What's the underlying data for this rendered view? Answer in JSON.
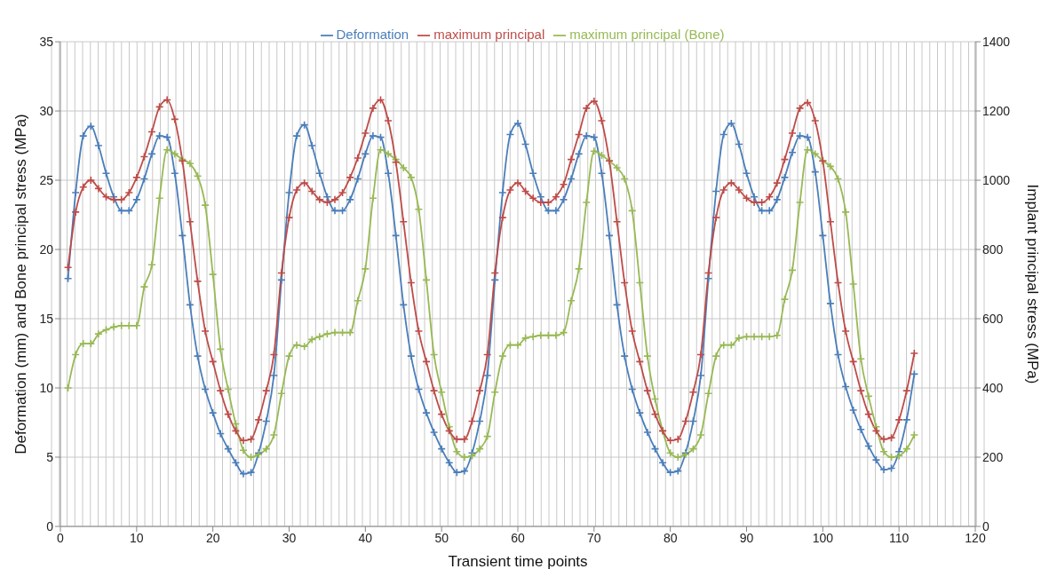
{
  "chart_data": {
    "type": "line",
    "xlabel": "Transient time points",
    "ylabel": "Deformation (mm) and Bone principal stress (MPa)",
    "y2label": "Implant principal stress (MPa)",
    "x": [
      1,
      2,
      3,
      4,
      5,
      6,
      7,
      8,
      9,
      10,
      11,
      12,
      13,
      14,
      15,
      16,
      17,
      18,
      19,
      20,
      21,
      22,
      23,
      24,
      25,
      26,
      27,
      28,
      29,
      30,
      31,
      32,
      33,
      34,
      35,
      36,
      37,
      38,
      39,
      40,
      41,
      42,
      43,
      44,
      45,
      46,
      47,
      48,
      49,
      50,
      51,
      52,
      53,
      54,
      55,
      56,
      57,
      58,
      59,
      60,
      61,
      62,
      63,
      64,
      65,
      66,
      67,
      68,
      69,
      70,
      71,
      72,
      73,
      74,
      75,
      76,
      77,
      78,
      79,
      80,
      81,
      82,
      83,
      84,
      85,
      86,
      87,
      88,
      89,
      90,
      91,
      92,
      93,
      94,
      95,
      96,
      97,
      98,
      99,
      100,
      101,
      102,
      103,
      104,
      105,
      106,
      107,
      108,
      109,
      110,
      111,
      112
    ],
    "xlim": [
      0,
      120
    ],
    "xticks": [
      0,
      10,
      20,
      30,
      40,
      50,
      60,
      70,
      80,
      90,
      100,
      110,
      120
    ],
    "ylim": [
      0,
      35
    ],
    "yticks": [
      0,
      5,
      10,
      15,
      20,
      25,
      30,
      35
    ],
    "y2lim": [
      0,
      1400
    ],
    "y2ticks": [
      0,
      200,
      400,
      600,
      800,
      1000,
      1200,
      1400
    ],
    "grid": true,
    "legend": "top",
    "marker": "cross",
    "line_style": "solid",
    "series": [
      {
        "name": "Deformation",
        "color": "#4a7ebb",
        "values": [
          17.9,
          24.1,
          28.2,
          28.9,
          27.5,
          25.5,
          23.8,
          22.8,
          22.8,
          23.6,
          25.1,
          26.9,
          28.2,
          28.1,
          25.5,
          21.0,
          16.0,
          12.3,
          9.9,
          8.2,
          6.7,
          5.6,
          4.6,
          3.8,
          3.9,
          5.3,
          7.6,
          10.9,
          17.8,
          24.1,
          28.2,
          29.0,
          27.5,
          25.5,
          23.8,
          22.8,
          22.8,
          23.6,
          25.1,
          26.9,
          28.2,
          28.1,
          25.5,
          21.0,
          16.0,
          12.3,
          9.9,
          8.2,
          6.8,
          5.6,
          4.6,
          3.9,
          4.0,
          5.3,
          7.6,
          10.9,
          17.8,
          24.1,
          28.3,
          29.1,
          27.6,
          25.5,
          23.8,
          22.8,
          22.8,
          23.6,
          25.1,
          26.9,
          28.2,
          28.1,
          25.5,
          21.0,
          16.0,
          12.3,
          9.9,
          8.2,
          6.8,
          5.6,
          4.6,
          3.9,
          4.0,
          5.3,
          7.6,
          10.9,
          17.9,
          24.2,
          28.3,
          29.1,
          27.6,
          25.5,
          23.8,
          22.8,
          22.8,
          23.6,
          25.2,
          27.0,
          28.2,
          28.1,
          25.6,
          21.0,
          16.1,
          12.4,
          10.1,
          8.4,
          7.0,
          5.8,
          4.8,
          4.1,
          4.2,
          5.4,
          7.7,
          11.0
        ]
      },
      {
        "name": "maximum principal (Bone)",
        "color": "#98b954",
        "values": [
          10.0,
          12.4,
          13.2,
          13.2,
          13.9,
          14.2,
          14.4,
          14.5,
          14.5,
          14.5,
          17.3,
          18.9,
          23.7,
          27.2,
          26.9,
          26.5,
          26.2,
          25.3,
          23.2,
          18.2,
          12.8,
          9.9,
          7.4,
          5.5,
          5.0,
          5.2,
          5.6,
          6.6,
          9.6,
          12.3,
          13.1,
          13.0,
          13.5,
          13.7,
          13.9,
          14.0,
          14.0,
          14.0,
          16.3,
          18.6,
          23.7,
          27.2,
          26.9,
          26.5,
          25.9,
          25.2,
          22.9,
          17.8,
          12.4,
          9.7,
          7.2,
          5.4,
          5.0,
          5.1,
          5.6,
          6.5,
          9.7,
          12.3,
          13.1,
          13.1,
          13.6,
          13.7,
          13.8,
          13.8,
          13.8,
          14.0,
          16.3,
          18.6,
          23.4,
          27.1,
          26.8,
          26.4,
          25.9,
          25.1,
          22.8,
          17.6,
          12.3,
          9.2,
          6.9,
          5.3,
          5.0,
          5.2,
          5.6,
          6.6,
          9.6,
          12.3,
          13.1,
          13.1,
          13.6,
          13.7,
          13.7,
          13.7,
          13.7,
          13.8,
          16.4,
          18.5,
          23.4,
          27.2,
          26.9,
          26.4,
          26.0,
          25.1,
          22.7,
          17.5,
          12.1,
          9.4,
          7.2,
          5.4,
          5.0,
          5.1,
          5.6,
          6.6
        ]
      },
      {
        "name": "maximum principal",
        "color": "#be4b48",
        "axis": "y2",
        "values": [
          748,
          908,
          980,
          1000,
          976,
          952,
          944,
          944,
          964,
          1008,
          1068,
          1140,
          1212,
          1232,
          1176,
          1056,
          880,
          708,
          564,
          476,
          392,
          324,
          276,
          248,
          252,
          308,
          392,
          496,
          732,
          892,
          972,
          992,
          968,
          944,
          936,
          944,
          964,
          1008,
          1064,
          1136,
          1208,
          1232,
          1172,
          1052,
          880,
          704,
          564,
          476,
          392,
          324,
          276,
          252,
          252,
          304,
          392,
          496,
          732,
          892,
          972,
          992,
          968,
          948,
          936,
          936,
          952,
          988,
          1060,
          1132,
          1208,
          1228,
          1172,
          1056,
          880,
          704,
          564,
          476,
          392,
          324,
          276,
          248,
          252,
          304,
          388,
          496,
          732,
          892,
          972,
          992,
          972,
          948,
          936,
          936,
          952,
          992,
          1060,
          1136,
          1208,
          1224,
          1172,
          1056,
          880,
          704,
          564,
          476,
          392,
          324,
          276,
          252,
          256,
          308,
          392,
          500
        ]
      }
    ]
  }
}
